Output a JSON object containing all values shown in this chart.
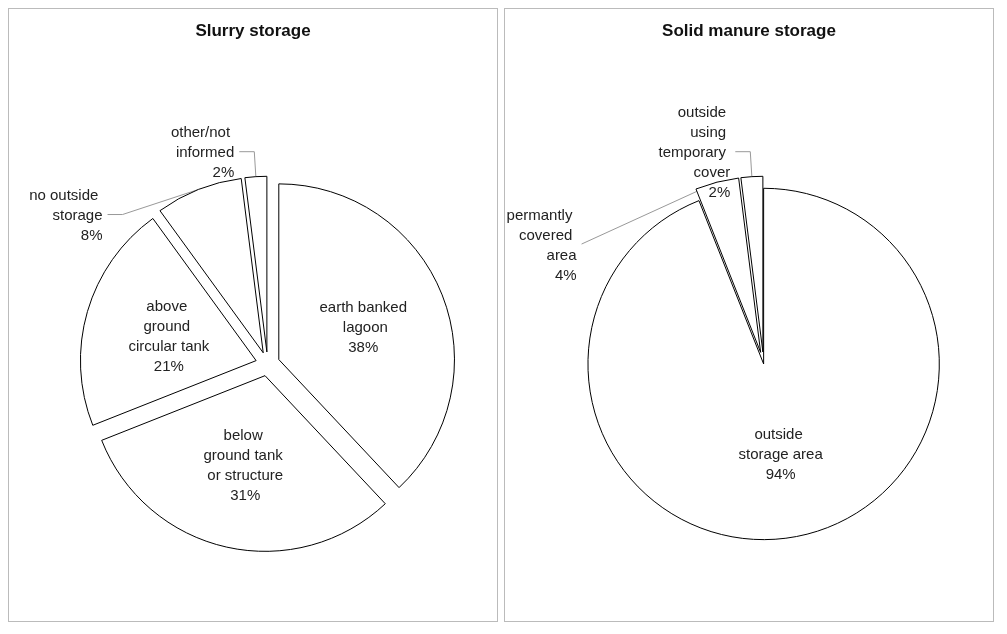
{
  "chart_data": [
    {
      "type": "pie",
      "title": "Slurry storage",
      "categories": [
        "earth banked lagoon",
        "below ground tank or structure",
        "above ground circular tank",
        "no outside storage",
        "other/not informed"
      ],
      "values": [
        38,
        31,
        21,
        8,
        2
      ],
      "value_labels": [
        "38%",
        "31%",
        "21%",
        "8%",
        "2%"
      ],
      "colors": [
        "#ffffff",
        "#ffffff",
        "#ffffff",
        "#ffffff",
        "#ffffff"
      ]
    },
    {
      "type": "pie",
      "title": "Solid manure storage",
      "categories": [
        "outside storage area",
        "permantly covered area",
        "outside using temporary cover"
      ],
      "values": [
        94,
        4,
        2
      ],
      "value_labels": [
        "94%",
        "4%",
        "2%"
      ],
      "colors": [
        "#ffffff",
        "#ffffff",
        "#ffffff"
      ]
    }
  ]
}
